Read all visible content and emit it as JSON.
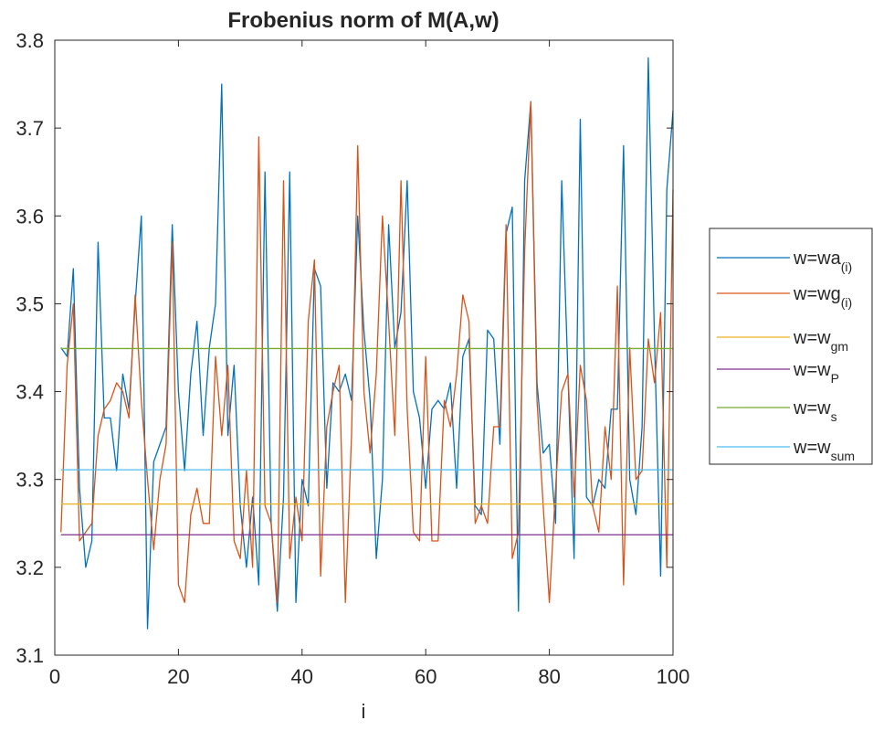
{
  "chart_data": {
    "type": "line",
    "title": "Frobenius norm of M(A,w)",
    "xlabel": "i",
    "ylabel": "",
    "xlim": [
      0,
      100
    ],
    "ylim": [
      3.1,
      3.8
    ],
    "xticks": [
      0,
      20,
      40,
      60,
      80,
      100
    ],
    "yticks": [
      3.1,
      3.2,
      3.3,
      3.4,
      3.5,
      3.6,
      3.7,
      3.8
    ],
    "ytick_labels": [
      "3.1",
      "3.2",
      "3.3",
      "3.4",
      "3.5",
      "3.6",
      "3.7",
      "3.8"
    ],
    "grid": false,
    "legend_position": "outside-right",
    "series": [
      {
        "name": "w=wa(i)",
        "label_main": "w=wa",
        "label_sub": "(i)",
        "color": "#0072BD",
        "x": [
          1,
          2,
          3,
          4,
          5,
          6,
          7,
          8,
          9,
          10,
          11,
          12,
          13,
          14,
          15,
          16,
          17,
          18,
          19,
          20,
          21,
          22,
          23,
          24,
          25,
          26,
          27,
          28,
          29,
          30,
          31,
          32,
          33,
          34,
          35,
          36,
          37,
          38,
          39,
          40,
          41,
          42,
          43,
          44,
          45,
          46,
          47,
          48,
          49,
          50,
          51,
          52,
          53,
          54,
          55,
          56,
          57,
          58,
          59,
          60,
          61,
          62,
          63,
          64,
          65,
          66,
          67,
          68,
          69,
          70,
          71,
          72,
          73,
          74,
          75,
          76,
          77,
          78,
          79,
          80,
          81,
          82,
          83,
          84,
          85,
          86,
          87,
          88,
          89,
          90,
          91,
          92,
          93,
          94,
          95,
          96,
          97,
          98,
          99,
          100
        ],
        "values": [
          3.45,
          3.44,
          3.54,
          3.29,
          3.2,
          3.23,
          3.57,
          3.37,
          3.37,
          3.31,
          3.42,
          3.38,
          3.5,
          3.6,
          3.13,
          3.32,
          3.34,
          3.36,
          3.59,
          3.4,
          3.31,
          3.42,
          3.48,
          3.35,
          3.45,
          3.5,
          3.75,
          3.35,
          3.43,
          3.27,
          3.2,
          3.28,
          3.18,
          3.65,
          3.25,
          3.15,
          3.28,
          3.65,
          3.16,
          3.3,
          3.27,
          3.54,
          3.52,
          3.29,
          3.41,
          3.4,
          3.42,
          3.39,
          3.6,
          3.47,
          3.39,
          3.21,
          3.3,
          3.59,
          3.45,
          3.49,
          3.64,
          3.4,
          3.37,
          3.29,
          3.38,
          3.39,
          3.38,
          3.41,
          3.29,
          3.44,
          3.46,
          3.27,
          3.26,
          3.47,
          3.46,
          3.34,
          3.58,
          3.61,
          3.15,
          3.64,
          3.73,
          3.41,
          3.33,
          3.34,
          3.25,
          3.64,
          3.42,
          3.21,
          3.71,
          3.28,
          3.27,
          3.3,
          3.29,
          3.38,
          3.38,
          3.68,
          3.3,
          3.26,
          3.36,
          3.78,
          3.46,
          3.19,
          3.63,
          3.72
        ]
      },
      {
        "name": "w=wg(i)",
        "label_main": "w=wg",
        "label_sub": "(i)",
        "color": "#D95319",
        "x": [
          1,
          2,
          3,
          4,
          5,
          6,
          7,
          8,
          9,
          10,
          11,
          12,
          13,
          14,
          15,
          16,
          17,
          18,
          19,
          20,
          21,
          22,
          23,
          24,
          25,
          26,
          27,
          28,
          29,
          30,
          31,
          32,
          33,
          34,
          35,
          36,
          37,
          38,
          39,
          40,
          41,
          42,
          43,
          44,
          45,
          46,
          47,
          48,
          49,
          50,
          51,
          52,
          53,
          54,
          55,
          56,
          57,
          58,
          59,
          60,
          61,
          62,
          63,
          64,
          65,
          66,
          67,
          68,
          69,
          70,
          71,
          72,
          73,
          74,
          75,
          76,
          77,
          78,
          79,
          80,
          81,
          82,
          83,
          84,
          85,
          86,
          87,
          88,
          89,
          90,
          91,
          92,
          93,
          94,
          95,
          96,
          97,
          98,
          99,
          100
        ],
        "values": [
          3.24,
          3.43,
          3.5,
          3.23,
          3.24,
          3.25,
          3.35,
          3.38,
          3.39,
          3.41,
          3.4,
          3.37,
          3.51,
          3.39,
          3.3,
          3.22,
          3.3,
          3.34,
          3.57,
          3.18,
          3.16,
          3.26,
          3.29,
          3.25,
          3.25,
          3.44,
          3.35,
          3.43,
          3.23,
          3.21,
          3.31,
          3.2,
          3.69,
          3.27,
          3.25,
          3.16,
          3.64,
          3.21,
          3.28,
          3.23,
          3.48,
          3.55,
          3.19,
          3.36,
          3.4,
          3.43,
          3.16,
          3.35,
          3.68,
          3.4,
          3.33,
          3.42,
          3.6,
          3.48,
          3.35,
          3.64,
          3.38,
          3.24,
          3.23,
          3.44,
          3.23,
          3.23,
          3.39,
          3.36,
          3.42,
          3.51,
          3.48,
          3.25,
          3.27,
          3.25,
          3.36,
          3.36,
          3.59,
          3.21,
          3.24,
          3.56,
          3.73,
          3.39,
          3.27,
          3.16,
          3.29,
          3.4,
          3.42,
          3.28,
          3.43,
          3.39,
          3.27,
          3.24,
          3.36,
          3.3,
          3.52,
          3.18,
          3.45,
          3.3,
          3.31,
          3.46,
          3.41,
          3.49,
          3.2,
          3.63
        ]
      },
      {
        "name": "w=wgm",
        "label_main": "w=w",
        "label_sub": "gm",
        "color": "#EDB120",
        "x": [
          1,
          100
        ],
        "values": [
          3.272,
          3.272
        ]
      },
      {
        "name": "w=wP",
        "label_main": "w=w",
        "label_sub": "P",
        "color": "#7E2F8E",
        "x": [
          1,
          100
        ],
        "values": [
          3.237,
          3.237
        ]
      },
      {
        "name": "w=ws",
        "label_main": "w=w",
        "label_sub": "s",
        "color": "#77AC30",
        "x": [
          1,
          100
        ],
        "values": [
          3.449,
          3.449
        ]
      },
      {
        "name": "w=wsum",
        "label_main": "w=w",
        "label_sub": "sum",
        "color": "#4DBEEE",
        "x": [
          1,
          100
        ],
        "values": [
          3.311,
          3.311
        ]
      }
    ]
  }
}
